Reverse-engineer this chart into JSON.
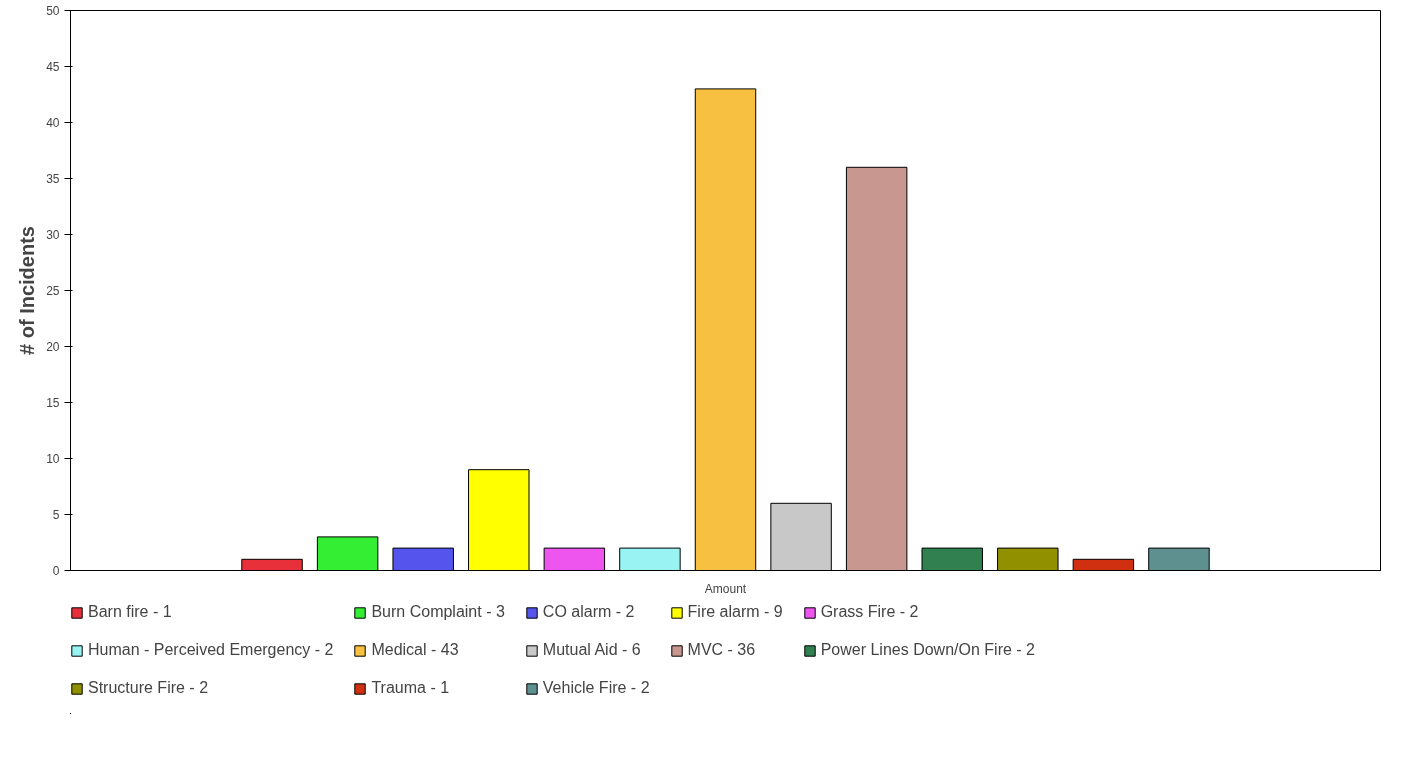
{
  "chart_data": {
    "type": "bar",
    "ylabel": "# of Incidents",
    "categories": [
      "Amount"
    ],
    "series": [
      {
        "name": "Barn fire - 1",
        "color": "#e8303a",
        "values": [
          1
        ]
      },
      {
        "name": "Burn Complaint - 3",
        "color": "#33ee33",
        "values": [
          3
        ]
      },
      {
        "name": "CO alarm - 2",
        "color": "#5555ee",
        "values": [
          2
        ]
      },
      {
        "name": "Fire alarm - 9",
        "color": "#ffff00",
        "values": [
          9
        ]
      },
      {
        "name": "Grass Fire - 2",
        "color": "#ee55ee",
        "values": [
          2
        ]
      },
      {
        "name": "Human - Perceived Emergency - 2",
        "color": "#99f3f3",
        "values": [
          2
        ]
      },
      {
        "name": "Medical - 43",
        "color": "#f8c040",
        "values": [
          43
        ]
      },
      {
        "name": "Mutual Aid - 6",
        "color": "#c8c8c8",
        "values": [
          6
        ]
      },
      {
        "name": "MVC - 36",
        "color": "#c89890",
        "values": [
          36
        ]
      },
      {
        "name": "Power Lines Down/On Fire - 2",
        "color": "#308050",
        "values": [
          2
        ]
      },
      {
        "name": "Structure Fire - 2",
        "color": "#909000",
        "values": [
          2
        ]
      },
      {
        "name": "Trauma - 1",
        "color": "#d03010",
        "values": [
          1
        ]
      },
      {
        "name": "Vehicle Fire - 2",
        "color": "#5f9090",
        "values": [
          2
        ]
      }
    ],
    "ylim": [
      0,
      50
    ],
    "yticks": [
      0,
      5,
      10,
      15,
      20,
      25,
      30,
      35,
      40,
      45,
      50
    ],
    "grid": false,
    "legend": "bottom"
  }
}
